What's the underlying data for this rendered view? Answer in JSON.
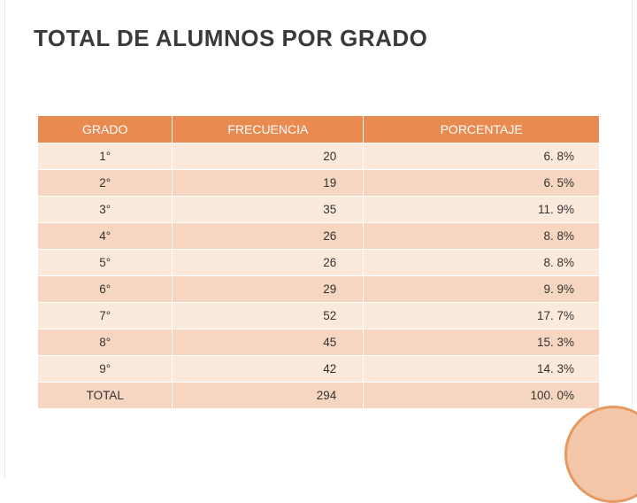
{
  "title": "TOTAL DE ALUMNOS POR GRADO",
  "table": {
    "type": "table",
    "background_color": "#ffffff",
    "header_bg": "#e98a50",
    "header_fg": "#ffffff",
    "row_odd_bg": "#fbe9dc",
    "row_even_bg": "#f6d6c0",
    "text_color": "#333333",
    "font_size": 13.5,
    "header_font_size": 14,
    "columns": [
      {
        "label": "GRADO",
        "align": "center",
        "width_pct": 24
      },
      {
        "label": "FRECUENCIA",
        "align": "right",
        "width_pct": 34
      },
      {
        "label": "PORCENTAJE",
        "align": "right",
        "width_pct": 42
      }
    ],
    "rows": [
      {
        "c0": "1°",
        "c1": "20",
        "c2": "6. 8%"
      },
      {
        "c0": "2°",
        "c1": "19",
        "c2": "6. 5%"
      },
      {
        "c0": "3°",
        "c1": "35",
        "c2": "11. 9%"
      },
      {
        "c0": "4°",
        "c1": "26",
        "c2": "8. 8%"
      },
      {
        "c0": "5°",
        "c1": "26",
        "c2": "8. 8%"
      },
      {
        "c0": "6°",
        "c1": "29",
        "c2": "9. 9%"
      },
      {
        "c0": "7°",
        "c1": "52",
        "c2": "17. 7%"
      },
      {
        "c0": "8°",
        "c1": "45",
        "c2": "15. 3%"
      },
      {
        "c0": "9°",
        "c1": "42",
        "c2": "14. 3%"
      },
      {
        "c0": "TOTAL",
        "c1": "294",
        "c2": "100. 0%"
      }
    ]
  },
  "decoration": {
    "circle_fill": "#f2c6a6",
    "circle_border": "#e69a61"
  }
}
